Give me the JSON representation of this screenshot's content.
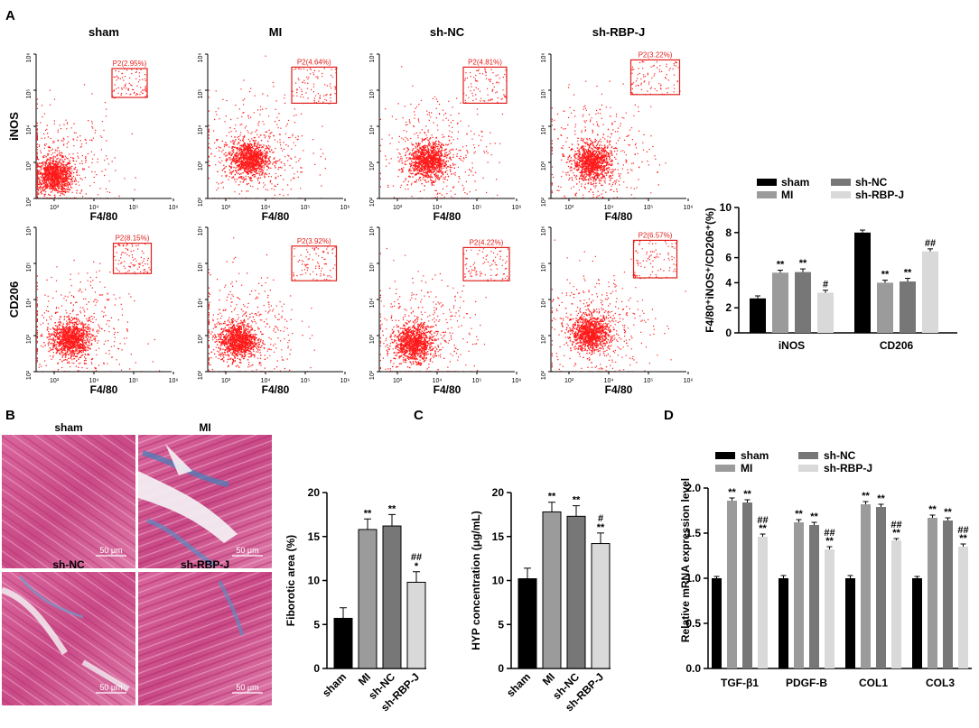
{
  "panel_labels": {
    "a": "A",
    "b": "B",
    "c": "C",
    "d": "D"
  },
  "colors": {
    "sham": "#000000",
    "MI": "#9b9b9b",
    "sh-NC": "#777777",
    "sh-RBP-J": "#d9d9d9",
    "dots": "#ff1a1a"
  },
  "flow": {
    "columns": [
      "sham",
      "MI",
      "sh-NC",
      "sh-RBP-J"
    ],
    "row_labels": [
      "iNOS",
      "CD206"
    ],
    "x_label": "F4/80",
    "x_ticks": [
      "10³",
      "10⁴",
      "10⁵",
      "10⁶"
    ],
    "y_ticks": [
      "10⁶",
      "10⁵",
      "10⁴",
      "10³",
      "10²"
    ],
    "gates": [
      [
        "P2(2.95%)",
        "P2(4.64%)",
        "P2(4.81%)",
        "P2(3.22%)"
      ],
      [
        "P2(8.15%)",
        "P2(3.92%)",
        "P2(4.22%)",
        "P2(6.57%)"
      ]
    ]
  },
  "histology": {
    "labels": [
      "sham",
      "MI",
      "sh-NC",
      "sh-RBP-J"
    ],
    "scale_bar": "50 μm"
  },
  "chart_data": [
    {
      "id": "A",
      "type": "bar",
      "groups": [
        "iNOS",
        "CD206"
      ],
      "series": [
        {
          "name": "sham",
          "values": [
            2.75,
            8.0
          ],
          "errors": [
            0.2,
            0.2
          ],
          "sig": [
            "",
            ""
          ]
        },
        {
          "name": "MI",
          "values": [
            4.8,
            4.0
          ],
          "errors": [
            0.2,
            0.2
          ],
          "sig": [
            "**",
            "**"
          ]
        },
        {
          "name": "sh-NC",
          "values": [
            4.85,
            4.1
          ],
          "errors": [
            0.25,
            0.25
          ],
          "sig": [
            "**",
            "**"
          ]
        },
        {
          "name": "sh-RBP-J",
          "values": [
            3.2,
            6.5
          ],
          "errors": [
            0.2,
            0.2
          ],
          "sig": [
            "#",
            "##"
          ]
        }
      ],
      "ylabel": "F4/80⁺iNOS⁺/CD206⁺(%)",
      "ylim": [
        0,
        10
      ],
      "yticks": [
        "0",
        "2",
        "4",
        "6",
        "8",
        "10"
      ],
      "legend_position": "top"
    },
    {
      "id": "B",
      "type": "bar",
      "categories": [
        "sham",
        "MI",
        "sh-NC",
        "sh-RBP-J"
      ],
      "values": [
        5.7,
        15.8,
        16.2,
        9.8
      ],
      "errors": [
        1.2,
        1.2,
        1.3,
        1.2
      ],
      "sig": [
        "",
        "**",
        "**",
        "##\n*"
      ],
      "ylabel": "Fiborotic area (%)",
      "ylim": [
        0,
        20
      ],
      "yticks": [
        "0",
        "5",
        "10",
        "15",
        "20"
      ]
    },
    {
      "id": "C",
      "type": "bar",
      "categories": [
        "sham",
        "MI",
        "sh-NC",
        "sh-RBP-J"
      ],
      "values": [
        10.2,
        17.8,
        17.3,
        14.2
      ],
      "errors": [
        1.2,
        1.1,
        1.2,
        1.2
      ],
      "sig": [
        "",
        "**",
        "**",
        "#\n**"
      ],
      "ylabel": "HYP concentration (μg/mL)",
      "ylim": [
        0,
        20
      ],
      "yticks": [
        "0",
        "5",
        "10",
        "15",
        "20"
      ]
    },
    {
      "id": "D",
      "type": "bar",
      "groups": [
        "TGF-β1",
        "PDGF-B",
        "COL1",
        "COL3"
      ],
      "series": [
        {
          "name": "sham",
          "values": [
            1.0,
            1.0,
            1.0,
            1.0
          ],
          "errors": [
            0.02,
            0.03,
            0.03,
            0.02
          ],
          "sig": [
            "",
            "",
            "",
            ""
          ]
        },
        {
          "name": "MI",
          "values": [
            1.86,
            1.62,
            1.82,
            1.67
          ],
          "errors": [
            0.03,
            0.03,
            0.03,
            0.03
          ],
          "sig": [
            "**",
            "**",
            "**",
            "**"
          ]
        },
        {
          "name": "sh-NC",
          "values": [
            1.84,
            1.59,
            1.79,
            1.64
          ],
          "errors": [
            0.03,
            0.03,
            0.03,
            0.03
          ],
          "sig": [
            "**",
            "**",
            "**",
            "**"
          ]
        },
        {
          "name": "sh-RBP-J",
          "values": [
            1.46,
            1.32,
            1.42,
            1.35
          ],
          "errors": [
            0.03,
            0.03,
            0.02,
            0.03
          ],
          "sig": [
            "##\n**",
            "##\n**",
            "##\n**",
            "##\n**"
          ]
        }
      ],
      "ylabel": "Relative mRNA expression level",
      "ylim": [
        0,
        2.0
      ],
      "yticks": [
        "0.0",
        "0.5",
        "1.0",
        "1.5",
        "2.0"
      ],
      "legend_position": "top"
    }
  ]
}
